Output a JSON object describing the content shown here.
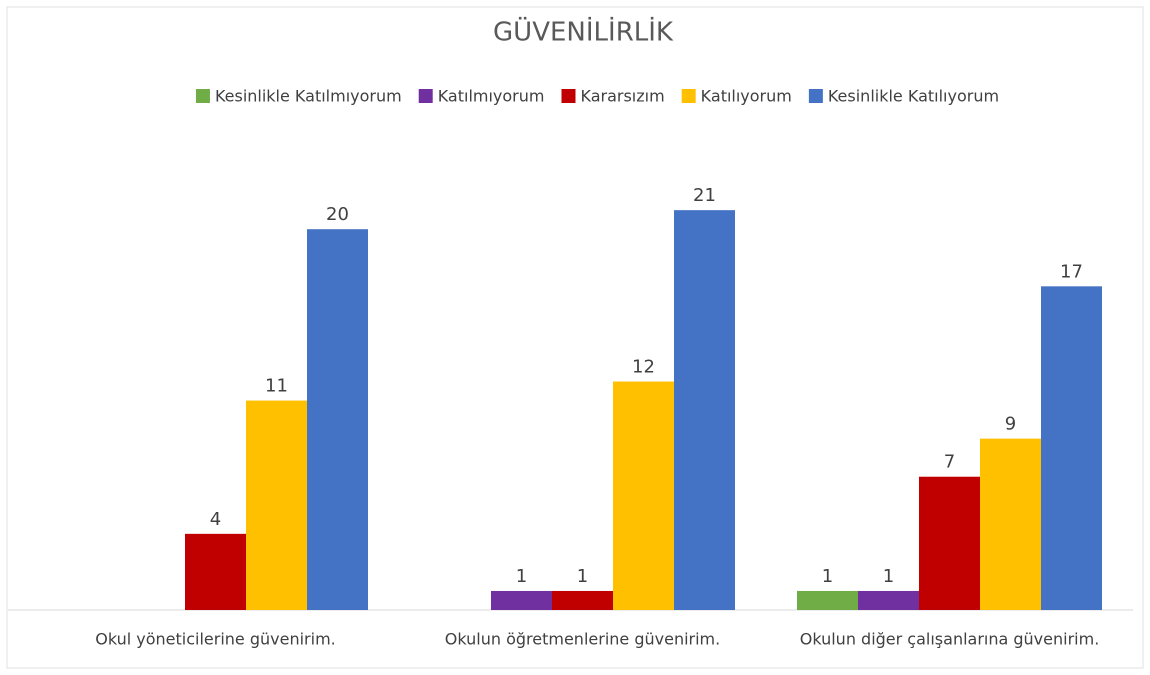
{
  "chart_data": {
    "type": "bar",
    "title": "GÜVENİLİRLİK",
    "categories": [
      "Okul yöneticilerine güvenirim.",
      "Okulun öğretmenlerine güvenirim.",
      "Okulun diğer çalışanlarına güvenirim."
    ],
    "series": [
      {
        "name": "Kesinlikle Katılmıyorum",
        "color": "#70ad47",
        "values": [
          null,
          null,
          1
        ]
      },
      {
        "name": "Katılmıyorum",
        "color": "#7030a0",
        "values": [
          null,
          1,
          1
        ]
      },
      {
        "name": "Kararsızım",
        "color": "#c00000",
        "values": [
          4,
          1,
          7
        ]
      },
      {
        "name": "Katılıyorum",
        "color": "#ffc000",
        "values": [
          11,
          12,
          9
        ]
      },
      {
        "name": "Kesinlikle Katılıyorum",
        "color": "#4472c4",
        "values": [
          20,
          21,
          17
        ]
      }
    ],
    "ylim": [
      0,
      25
    ],
    "legend": "top"
  }
}
